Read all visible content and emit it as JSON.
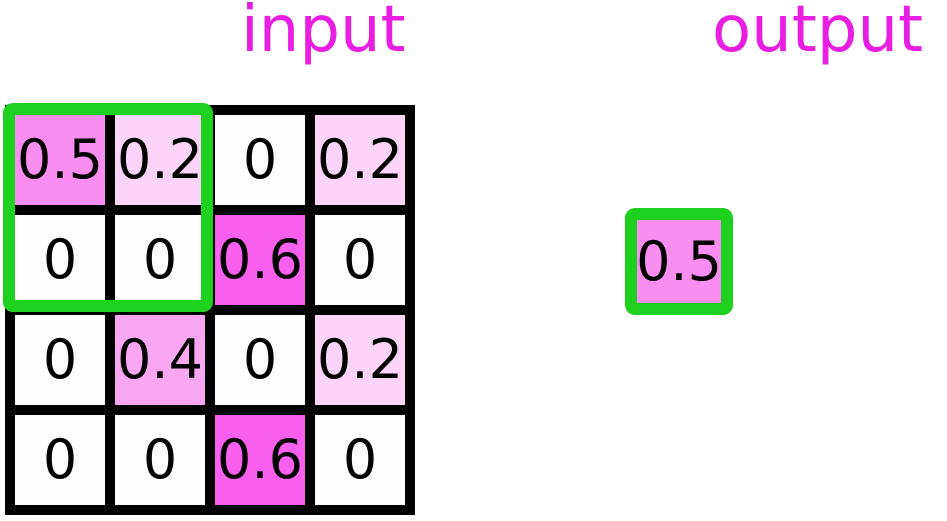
{
  "figure": {
    "background": "#ffffff",
    "description": "pooling operation: green 2x2 window over top-left of input grid produces output value"
  },
  "titles": {
    "input": "input",
    "output": "output",
    "title_color": "#e91ee3"
  },
  "grid": {
    "rows": [
      [
        "0.5",
        "0.2",
        "0",
        "0.2"
      ],
      [
        "0",
        "0",
        "0.6",
        "0"
      ],
      [
        "0",
        "0.4",
        "0",
        "0.2"
      ],
      [
        "0",
        "0",
        "0.6",
        "0"
      ]
    ]
  },
  "highlight": {
    "window": "top-left 2x2 cells",
    "color": "#1fd11f"
  },
  "output": {
    "value": "0.5"
  },
  "colors": {
    "grid_line": "#000000",
    "text": "#000000",
    "value_fill": {
      "0": "#fffdff",
      "0.2": "#fcd4f9",
      "0.4": "#faa7f3",
      "0.5": "#f98df0",
      "0.6": "#f960ee"
    }
  }
}
